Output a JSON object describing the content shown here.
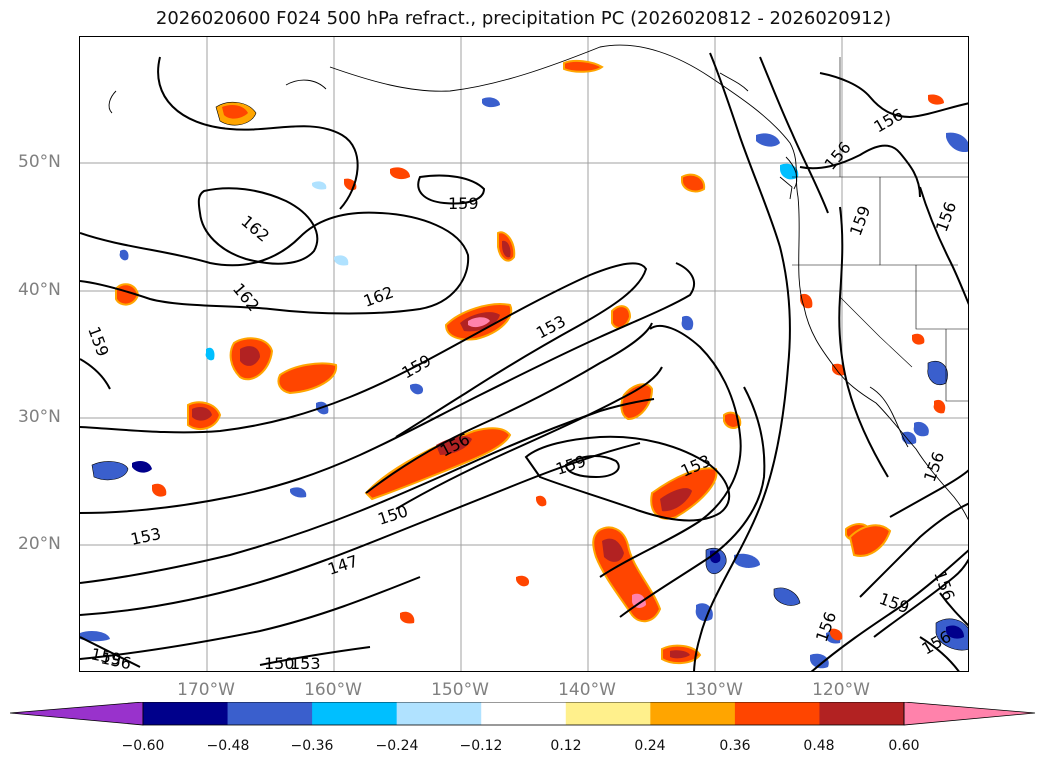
{
  "title": "2026020600 F024 500 hPa refract., precipitation PC (2026020812 - 2026020912)",
  "lat_labels": [
    "50°N",
    "40°N",
    "30°N",
    "20°N"
  ],
  "lon_labels": [
    "170°W",
    "160°W",
    "150°W",
    "140°W",
    "130°W",
    "120°W"
  ],
  "contour_labels": [
    "162",
    "162",
    "159",
    "159",
    "162",
    "153",
    "159",
    "156",
    "159",
    "153",
    "150",
    "153",
    "147",
    "156",
    "156",
    "159",
    "156",
    "156",
    "156",
    "156",
    "159",
    "156",
    "159",
    "156",
    "150",
    "153"
  ],
  "colorbar": {
    "ticks": [
      "−0.60",
      "−0.48",
      "−0.36",
      "−0.24",
      "−0.12",
      "0.12",
      "0.24",
      "0.36",
      "0.48",
      "0.60"
    ],
    "colors": [
      "#9932cc",
      "#00008b",
      "#3a5fcd",
      "#00bfff",
      "#b0e2ff",
      "#ffffff",
      "#fff08c",
      "#ffa500",
      "#ff4500",
      "#b22222",
      "#ff82ab"
    ]
  },
  "colors": {
    "contour": "#000000",
    "coast": "#000000",
    "grid": "#a0a0a0"
  }
}
